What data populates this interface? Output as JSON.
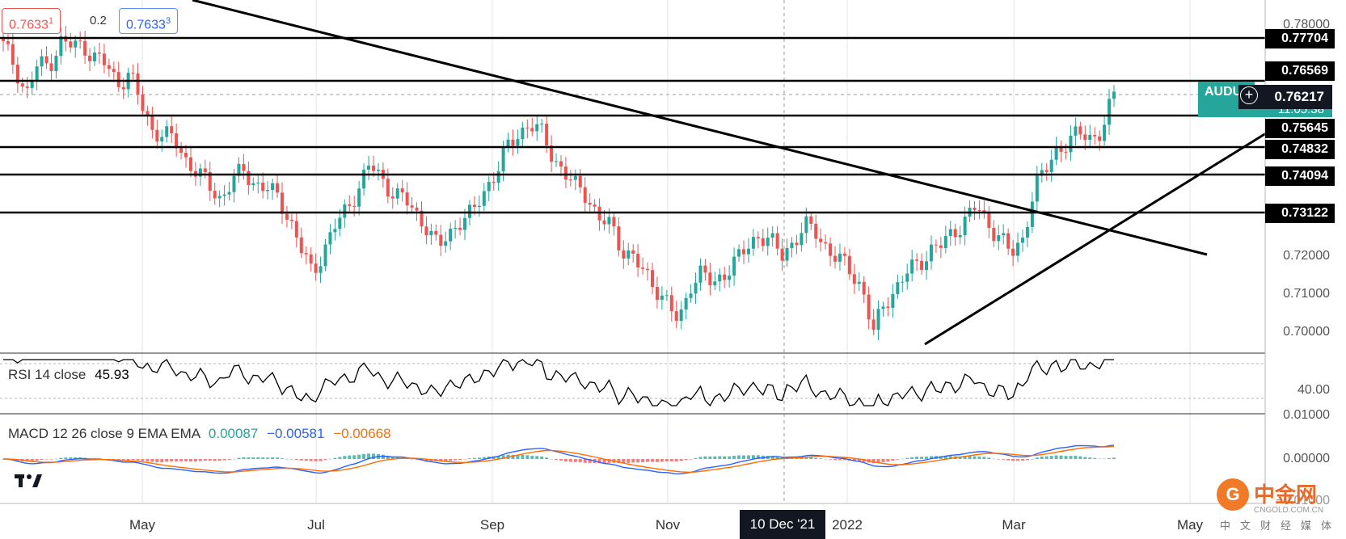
{
  "trade": {
    "sell_price": "0.7633",
    "sell_small": "1",
    "spread": "0.2",
    "buy_price": "0.7633",
    "buy_small": "3"
  },
  "price_axis": {
    "labels": [
      "0.78000",
      "0.72000",
      "0.71000",
      "0.70000"
    ]
  },
  "levels": [
    "0.77704",
    "0.76569",
    "0.75645",
    "0.74832",
    "0.74094",
    "0.73122"
  ],
  "current": {
    "symbol": "AUDUSD",
    "price": "0.76217",
    "countdown": "11:05:38"
  },
  "time_axis": {
    "months": [
      "May",
      "Jul",
      "Sep",
      "Nov",
      "2022",
      "Mar",
      "May"
    ],
    "date_badge": "10 Dec '21"
  },
  "rsi": {
    "label": "RSI 14 close",
    "value": "45.93",
    "level": "40.00"
  },
  "macd": {
    "label": "MACD 12 26 close 9 EMA EMA",
    "hist": "0.00087",
    "macd": "−0.00581",
    "signal": "−0.00668",
    "axis": [
      "0.01000",
      "0.00000",
      "−0.01000"
    ]
  },
  "colors": {
    "up": "#26a69a",
    "down": "#ef5350",
    "macd": "#2962ff",
    "signal": "#ff6d00",
    "rsi": "#000000"
  },
  "watermark": {
    "name": "中金网",
    "sub": "CNGOLD.COM.CN",
    "cn": "中文财经媒体"
  },
  "chart_data": {
    "type": "candlestick",
    "symbol": "AUDUSD",
    "horizontal_levels": [
      0.77704,
      0.76569,
      0.75645,
      0.74832,
      0.74094,
      0.73122
    ],
    "approx_close_path": [
      [
        0.775,
        0.77
      ],
      [
        0.762,
        0.77
      ],
      [
        0.77,
        0.776
      ],
      [
        0.775,
        0.775
      ],
      [
        0.772,
        0.77
      ],
      [
        0.765,
        0.768
      ],
      [
        0.76,
        0.753
      ],
      [
        0.752,
        0.75
      ],
      [
        0.745,
        0.742
      ],
      [
        0.738,
        0.735
      ],
      [
        0.74,
        0.742
      ],
      [
        0.739,
        0.738
      ],
      [
        0.735,
        0.73
      ],
      [
        0.722,
        0.715
      ],
      [
        0.722,
        0.728
      ],
      [
        0.732,
        0.738
      ],
      [
        0.744,
        0.74
      ],
      [
        0.737,
        0.735
      ],
      [
        0.731,
        0.728
      ],
      [
        0.722,
        0.726
      ],
      [
        0.73,
        0.731
      ],
      [
        0.737,
        0.742
      ],
      [
        0.748,
        0.752
      ],
      [
        0.755,
        0.752
      ],
      [
        0.746,
        0.742
      ],
      [
        0.738,
        0.736
      ],
      [
        0.73,
        0.728
      ],
      [
        0.722,
        0.72
      ],
      [
        0.715,
        0.712
      ],
      [
        0.708,
        0.702
      ],
      [
        0.713,
        0.716
      ],
      [
        0.712,
        0.716
      ],
      [
        0.719,
        0.722
      ],
      [
        0.726,
        0.724
      ],
      [
        0.72,
        0.724
      ],
      [
        0.728,
        0.726
      ],
      [
        0.722,
        0.719
      ],
      [
        0.716,
        0.712
      ],
      [
        0.7,
        0.708
      ],
      [
        0.712,
        0.716
      ],
      [
        0.718,
        0.722
      ],
      [
        0.723,
        0.726
      ],
      [
        0.73,
        0.733
      ],
      [
        0.728,
        0.726
      ],
      [
        0.72,
        0.724
      ],
      [
        0.738,
        0.742
      ],
      [
        0.748,
        0.75
      ],
      [
        0.752,
        0.751
      ],
      [
        0.753,
        0.762
      ]
    ]
  }
}
